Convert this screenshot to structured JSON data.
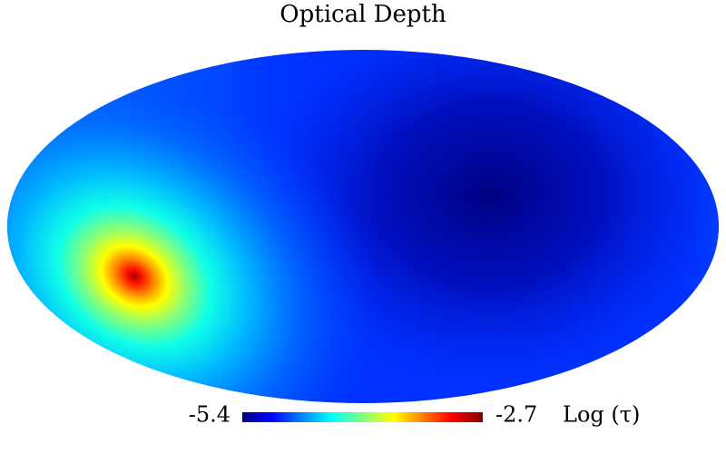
{
  "title": "Optical Depth",
  "colorbar": {
    "min": -5.4,
    "max": -2.7,
    "label": "Log (τ)"
  }
}
